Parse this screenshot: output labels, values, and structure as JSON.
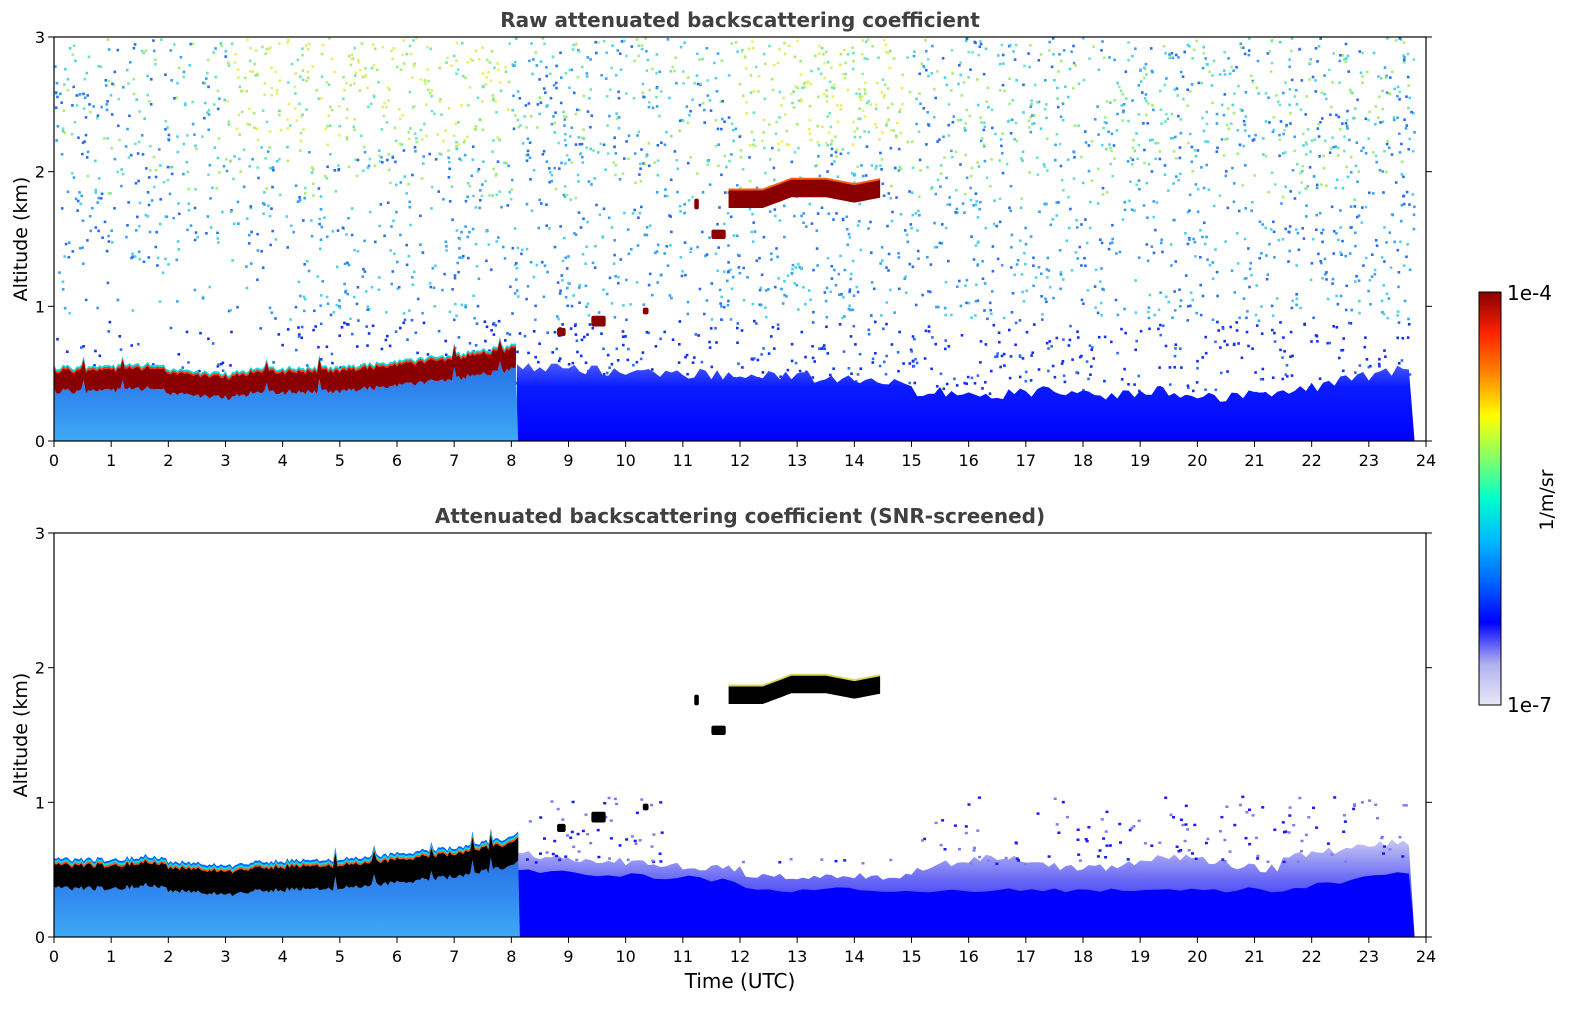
{
  "chart_data": [
    {
      "type": "heatmap",
      "title": "Raw attenuated backscattering coefficient",
      "ylabel": "Altitude (km)",
      "xlabel": "",
      "xlim": [
        0,
        24
      ],
      "ylim": [
        0,
        3
      ],
      "xticks": [
        "0",
        "1",
        "2",
        "3",
        "4",
        "5",
        "6",
        "7",
        "8",
        "9",
        "10",
        "11",
        "12",
        "13",
        "14",
        "15",
        "16",
        "17",
        "18",
        "19",
        "20",
        "21",
        "22",
        "23",
        "24"
      ],
      "yticks": [
        "0",
        "1",
        "2",
        "3"
      ],
      "features": {
        "boundary_layer_top": {
          "x": [
            0,
            1,
            1.7,
            2,
            3,
            3.4,
            4,
            5,
            6,
            7,
            8,
            8.1
          ],
          "y": [
            0.46,
            0.46,
            0.49,
            0.45,
            0.41,
            0.44,
            0.45,
            0.46,
            0.5,
            0.55,
            0.62,
            0.65
          ]
        },
        "elevated_cloud": {
          "x": [
            11.8,
            12.4,
            12.9,
            13.5,
            14.0,
            14.5
          ],
          "y": [
            1.8,
            1.8,
            1.88,
            1.88,
            1.84,
            1.88
          ]
        }
      }
    },
    {
      "type": "heatmap",
      "title": "Attenuated backscattering coefficient (SNR-screened)",
      "ylabel": "Altitude (km)",
      "xlabel": "Time (UTC)",
      "xlim": [
        0,
        24
      ],
      "ylim": [
        0,
        3
      ],
      "xticks": [
        "0",
        "1",
        "2",
        "3",
        "4",
        "5",
        "6",
        "7",
        "8",
        "9",
        "10",
        "11",
        "12",
        "13",
        "14",
        "15",
        "16",
        "17",
        "18",
        "19",
        "20",
        "21",
        "22",
        "23",
        "24"
      ],
      "yticks": [
        "0",
        "1",
        "2",
        "3"
      ]
    }
  ],
  "colorbar": {
    "max_label": "1e-4",
    "min_label": "1e-7",
    "unit_label": "1/m/sr",
    "colors": [
      "#e8e8f8",
      "#b0b0f0",
      "#0000ff",
      "#0066ff",
      "#00bbff",
      "#00ffcc",
      "#88ff66",
      "#ffff00",
      "#ff8800",
      "#ff2200",
      "#880000"
    ]
  }
}
